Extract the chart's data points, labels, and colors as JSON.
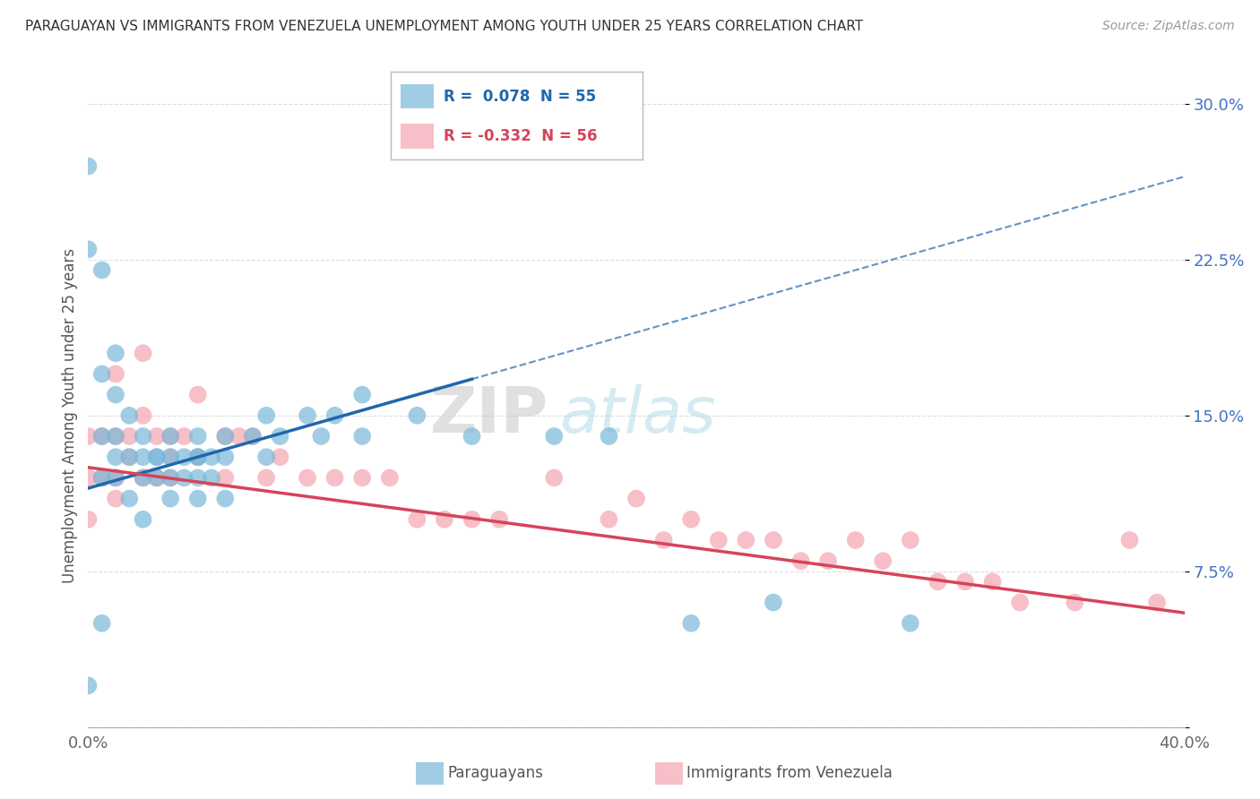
{
  "title": "PARAGUAYAN VS IMMIGRANTS FROM VENEZUELA UNEMPLOYMENT AMONG YOUTH UNDER 25 YEARS CORRELATION CHART",
  "source": "Source: ZipAtlas.com",
  "ylabel": "Unemployment Among Youth under 25 years",
  "xmin": 0.0,
  "xmax": 0.4,
  "ymin": 0.0,
  "ymax": 0.3,
  "xticks": [
    0.0,
    0.1,
    0.2,
    0.3,
    0.4
  ],
  "xticklabels": [
    "0.0%",
    "",
    "",
    "",
    "40.0%"
  ],
  "yticks": [
    0.0,
    0.075,
    0.15,
    0.225,
    0.3
  ],
  "yticklabels": [
    "",
    "7.5%",
    "15.0%",
    "22.5%",
    "30.0%"
  ],
  "blue_color": "#7ab8d9",
  "pink_color": "#f4a4b0",
  "blue_line_color": "#2166ac",
  "pink_line_color": "#d6445a",
  "watermark_zip": "ZIP",
  "watermark_atlas": "atlas",
  "background_color": "#ffffff",
  "grid_color": "#dddddd",
  "blue_scatter_x": [
    0.0,
    0.0,
    0.0,
    0.005,
    0.005,
    0.005,
    0.005,
    0.005,
    0.01,
    0.01,
    0.01,
    0.01,
    0.01,
    0.015,
    0.015,
    0.015,
    0.02,
    0.02,
    0.02,
    0.02,
    0.025,
    0.025,
    0.025,
    0.03,
    0.03,
    0.03,
    0.03,
    0.035,
    0.035,
    0.04,
    0.04,
    0.04,
    0.04,
    0.04,
    0.045,
    0.045,
    0.05,
    0.05,
    0.05,
    0.06,
    0.065,
    0.065,
    0.07,
    0.08,
    0.085,
    0.09,
    0.1,
    0.1,
    0.12,
    0.14,
    0.17,
    0.19,
    0.22,
    0.25,
    0.3
  ],
  "blue_scatter_y": [
    0.27,
    0.23,
    0.02,
    0.22,
    0.17,
    0.14,
    0.12,
    0.05,
    0.18,
    0.16,
    0.14,
    0.13,
    0.12,
    0.15,
    0.13,
    0.11,
    0.14,
    0.13,
    0.12,
    0.1,
    0.13,
    0.13,
    0.12,
    0.14,
    0.13,
    0.12,
    0.11,
    0.13,
    0.12,
    0.14,
    0.13,
    0.13,
    0.12,
    0.11,
    0.13,
    0.12,
    0.14,
    0.13,
    0.11,
    0.14,
    0.15,
    0.13,
    0.14,
    0.15,
    0.14,
    0.15,
    0.14,
    0.16,
    0.15,
    0.14,
    0.14,
    0.14,
    0.05,
    0.06,
    0.05
  ],
  "pink_scatter_x": [
    0.0,
    0.0,
    0.0,
    0.005,
    0.005,
    0.01,
    0.01,
    0.01,
    0.01,
    0.015,
    0.015,
    0.02,
    0.02,
    0.02,
    0.025,
    0.025,
    0.03,
    0.03,
    0.03,
    0.035,
    0.04,
    0.04,
    0.05,
    0.05,
    0.055,
    0.06,
    0.065,
    0.07,
    0.08,
    0.09,
    0.1,
    0.11,
    0.12,
    0.13,
    0.14,
    0.15,
    0.17,
    0.19,
    0.2,
    0.21,
    0.22,
    0.23,
    0.24,
    0.25,
    0.26,
    0.27,
    0.28,
    0.29,
    0.3,
    0.31,
    0.32,
    0.33,
    0.34,
    0.36,
    0.38,
    0.39
  ],
  "pink_scatter_y": [
    0.14,
    0.12,
    0.1,
    0.14,
    0.12,
    0.17,
    0.14,
    0.12,
    0.11,
    0.14,
    0.13,
    0.18,
    0.15,
    0.12,
    0.14,
    0.12,
    0.14,
    0.13,
    0.12,
    0.14,
    0.16,
    0.13,
    0.14,
    0.12,
    0.14,
    0.14,
    0.12,
    0.13,
    0.12,
    0.12,
    0.12,
    0.12,
    0.1,
    0.1,
    0.1,
    0.1,
    0.12,
    0.1,
    0.11,
    0.09,
    0.1,
    0.09,
    0.09,
    0.09,
    0.08,
    0.08,
    0.09,
    0.08,
    0.09,
    0.07,
    0.07,
    0.07,
    0.06,
    0.06,
    0.09,
    0.06
  ],
  "blue_line_x0": 0.0,
  "blue_line_y0": 0.115,
  "blue_line_x1": 0.4,
  "blue_line_y1": 0.265,
  "pink_line_x0": 0.0,
  "pink_line_y0": 0.125,
  "pink_line_x1": 0.4,
  "pink_line_y1": 0.055
}
